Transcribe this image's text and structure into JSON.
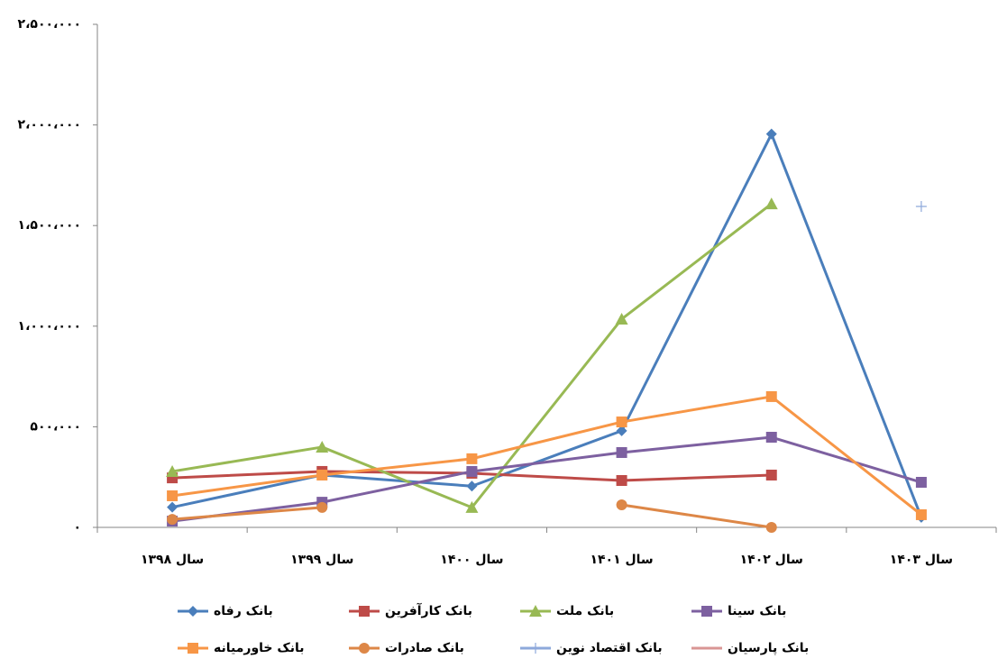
{
  "chart_data": {
    "type": "line",
    "categories": [
      "سال ۱۳۹۸",
      "سال ۱۳۹۹",
      "سال ۱۴۰۰",
      "سال ۱۴۰۱",
      "سال ۱۴۰۲",
      "سال ۱۴۰۳"
    ],
    "ylim": [
      0,
      2500000
    ],
    "yticks": [
      {
        "value": 0,
        "label": "۰"
      },
      {
        "value": 500000,
        "label": "۵۰۰،۰۰۰"
      },
      {
        "value": 1000000,
        "label": "۱،۰۰۰،۰۰۰"
      },
      {
        "value": 1500000,
        "label": "۱،۵۰۰،۰۰۰"
      },
      {
        "value": 2000000,
        "label": "۲،۰۰۰،۰۰۰"
      },
      {
        "value": 2500000,
        "label": "۲،۵۰۰،۰۰۰"
      }
    ],
    "grid": false,
    "legend": "bottom",
    "series": [
      {
        "name": "بانک رفاه",
        "color": "#4a7ebb",
        "marker": "diamond",
        "values": [
          100000,
          260000,
          205000,
          480000,
          1955000,
          50000
        ]
      },
      {
        "name": "بانک کارآفرین",
        "color": "#be4b48",
        "marker": "square",
        "values": [
          246000,
          278000,
          269000,
          233000,
          260000,
          null
        ]
      },
      {
        "name": "بانک ملت",
        "color": "#98b954",
        "marker": "triangle",
        "values": [
          278000,
          399000,
          99000,
          1035000,
          1608000,
          null
        ]
      },
      {
        "name": "بانک سینا",
        "color": "#7d60a0",
        "marker": "square",
        "values": [
          31000,
          125000,
          278000,
          372000,
          448000,
          224000
        ]
      },
      {
        "name": "بانک خاورمیانه",
        "color": "#f79646",
        "marker": "square",
        "values": [
          157000,
          260000,
          341000,
          524000,
          650000,
          63000
        ]
      },
      {
        "name": "بانک صادرات",
        "color": "#dd8747",
        "marker": "circle",
        "values": [
          40000,
          99000,
          null,
          112000,
          0,
          null
        ]
      },
      {
        "name": "بانک اقتصاد نوین",
        "color": "#8ea9db",
        "marker": "plus",
        "values": [
          null,
          null,
          null,
          null,
          null,
          1595000
        ]
      },
      {
        "name": "بانک پارسیان",
        "color": "#d99694",
        "values": [
          null,
          null,
          null,
          null,
          null,
          null
        ]
      }
    ]
  }
}
